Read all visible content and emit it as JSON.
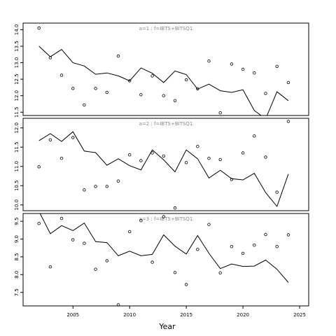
{
  "chart_data": {
    "type": "line",
    "xlabel": "Year",
    "x_ticks": [
      2005,
      2010,
      2015,
      2020,
      2025
    ],
    "xlim": [
      2000.6,
      2025.8
    ],
    "colors": {
      "line": "#000000",
      "axis": "#000000",
      "label": "#888888",
      "background": "#ffffff"
    },
    "panels": [
      {
        "label": "a=1 : f=IBTS+BITSQ1",
        "ylim": [
          11.4,
          14.2
        ],
        "y_ticks": [
          "11.5",
          "12.0",
          "12.5",
          "13.0",
          "13.5",
          "14.0"
        ],
        "series": [
          {
            "style": "line",
            "x": [
              2002,
              2003,
              2004,
              2005,
              2006,
              2007,
              2008,
              2009,
              2010,
              2011,
              2012,
              2013,
              2014,
              2015,
              2016,
              2017,
              2018,
              2019,
              2020,
              2021,
              2022,
              2023,
              2024
            ],
            "y": [
              13.5,
              13.18,
              13.4,
              13.0,
              12.9,
              12.65,
              12.69,
              12.6,
              12.45,
              12.84,
              12.68,
              12.4,
              12.75,
              12.64,
              12.2,
              12.35,
              12.15,
              12.1,
              12.18,
              11.55,
              11.3,
              12.12,
              11.85
            ]
          },
          {
            "style": "points",
            "x": [
              2002,
              2003,
              2004,
              2005,
              2006,
              2007,
              2008,
              2009,
              2010,
              2011,
              2012,
              2013,
              2014,
              2015,
              2016,
              2017,
              2018,
              2019,
              2020,
              2021,
              2022,
              2023,
              2024
            ],
            "y": [
              14.05,
              13.15,
              12.62,
              12.22,
              11.72,
              12.22,
              12.1,
              13.2,
              12.45,
              12.03,
              12.6,
              12.0,
              11.85,
              12.48,
              12.21,
              13.05,
              11.48,
              12.96,
              12.8,
              12.69,
              12.07,
              12.89,
              12.4
            ]
          }
        ]
      },
      {
        "label": "a=2 : f=IBTS+BITSQ1",
        "ylim": [
          9.85,
          12.25
        ],
        "y_ticks": [
          "10.0",
          "10.5",
          "11.0",
          "11.5",
          "12.0"
        ],
        "series": [
          {
            "style": "line",
            "x": [
              2002,
              2003,
              2004,
              2005,
              2006,
              2007,
              2008,
              2009,
              2010,
              2011,
              2012,
              2013,
              2014,
              2015,
              2016,
              2017,
              2018,
              2019,
              2020,
              2021,
              2022,
              2023,
              2024
            ],
            "y": [
              11.67,
              11.85,
              11.65,
              11.9,
              11.4,
              11.36,
              11.03,
              11.2,
              11.02,
              10.91,
              11.43,
              11.17,
              10.86,
              11.43,
              11.2,
              10.7,
              10.9,
              10.68,
              10.65,
              10.82,
              10.32,
              9.96,
              10.8
            ]
          },
          {
            "style": "points",
            "x": [
              2002,
              2003,
              2004,
              2005,
              2006,
              2007,
              2008,
              2009,
              2010,
              2011,
              2012,
              2013,
              2014,
              2015,
              2016,
              2017,
              2018,
              2019,
              2020,
              2021,
              2022,
              2023,
              2024
            ],
            "y": [
              10.99,
              11.69,
              11.21,
              11.75,
              10.39,
              10.48,
              10.48,
              10.62,
              11.3,
              11.15,
              11.35,
              11.27,
              9.92,
              11.1,
              11.52,
              11.21,
              11.18,
              10.66,
              11.35,
              11.79,
              11.24,
              10.33,
              12.17
            ]
          }
        ]
      },
      {
        "label": "a=3 : f=IBTS+BITSQ1",
        "ylim": [
          7.12,
          9.72
        ],
        "y_ticks": [
          "7.5",
          "8.0",
          "8.5",
          "9.0",
          "9.5"
        ],
        "series": [
          {
            "style": "line",
            "x": [
              2002,
              2003,
              2004,
              2005,
              2006,
              2007,
              2008,
              2009,
              2010,
              2011,
              2012,
              2013,
              2014,
              2015,
              2016,
              2017,
              2018,
              2019,
              2020,
              2021,
              2022,
              2023,
              2024
            ],
            "y": [
              9.78,
              9.15,
              9.38,
              9.24,
              9.45,
              8.93,
              8.9,
              8.53,
              8.66,
              8.53,
              8.57,
              9.12,
              8.8,
              8.58,
              9.1,
              8.6,
              8.17,
              8.3,
              8.23,
              8.24,
              8.41,
              8.15,
              7.78
            ]
          },
          {
            "style": "points",
            "x": [
              2002,
              2003,
              2004,
              2005,
              2006,
              2007,
              2008,
              2009,
              2010,
              2011,
              2012,
              2013,
              2014,
              2015,
              2016,
              2017,
              2018,
              2019,
              2020,
              2021,
              2022,
              2023,
              2024
            ],
            "y": [
              9.44,
              8.22,
              9.58,
              8.98,
              8.88,
              8.15,
              8.39,
              7.15,
              9.21,
              9.52,
              8.35,
              9.63,
              8.06,
              7.72,
              8.71,
              9.41,
              8.05,
              8.79,
              8.6,
              8.83,
              9.13,
              8.79,
              9.12
            ]
          }
        ]
      }
    ]
  }
}
